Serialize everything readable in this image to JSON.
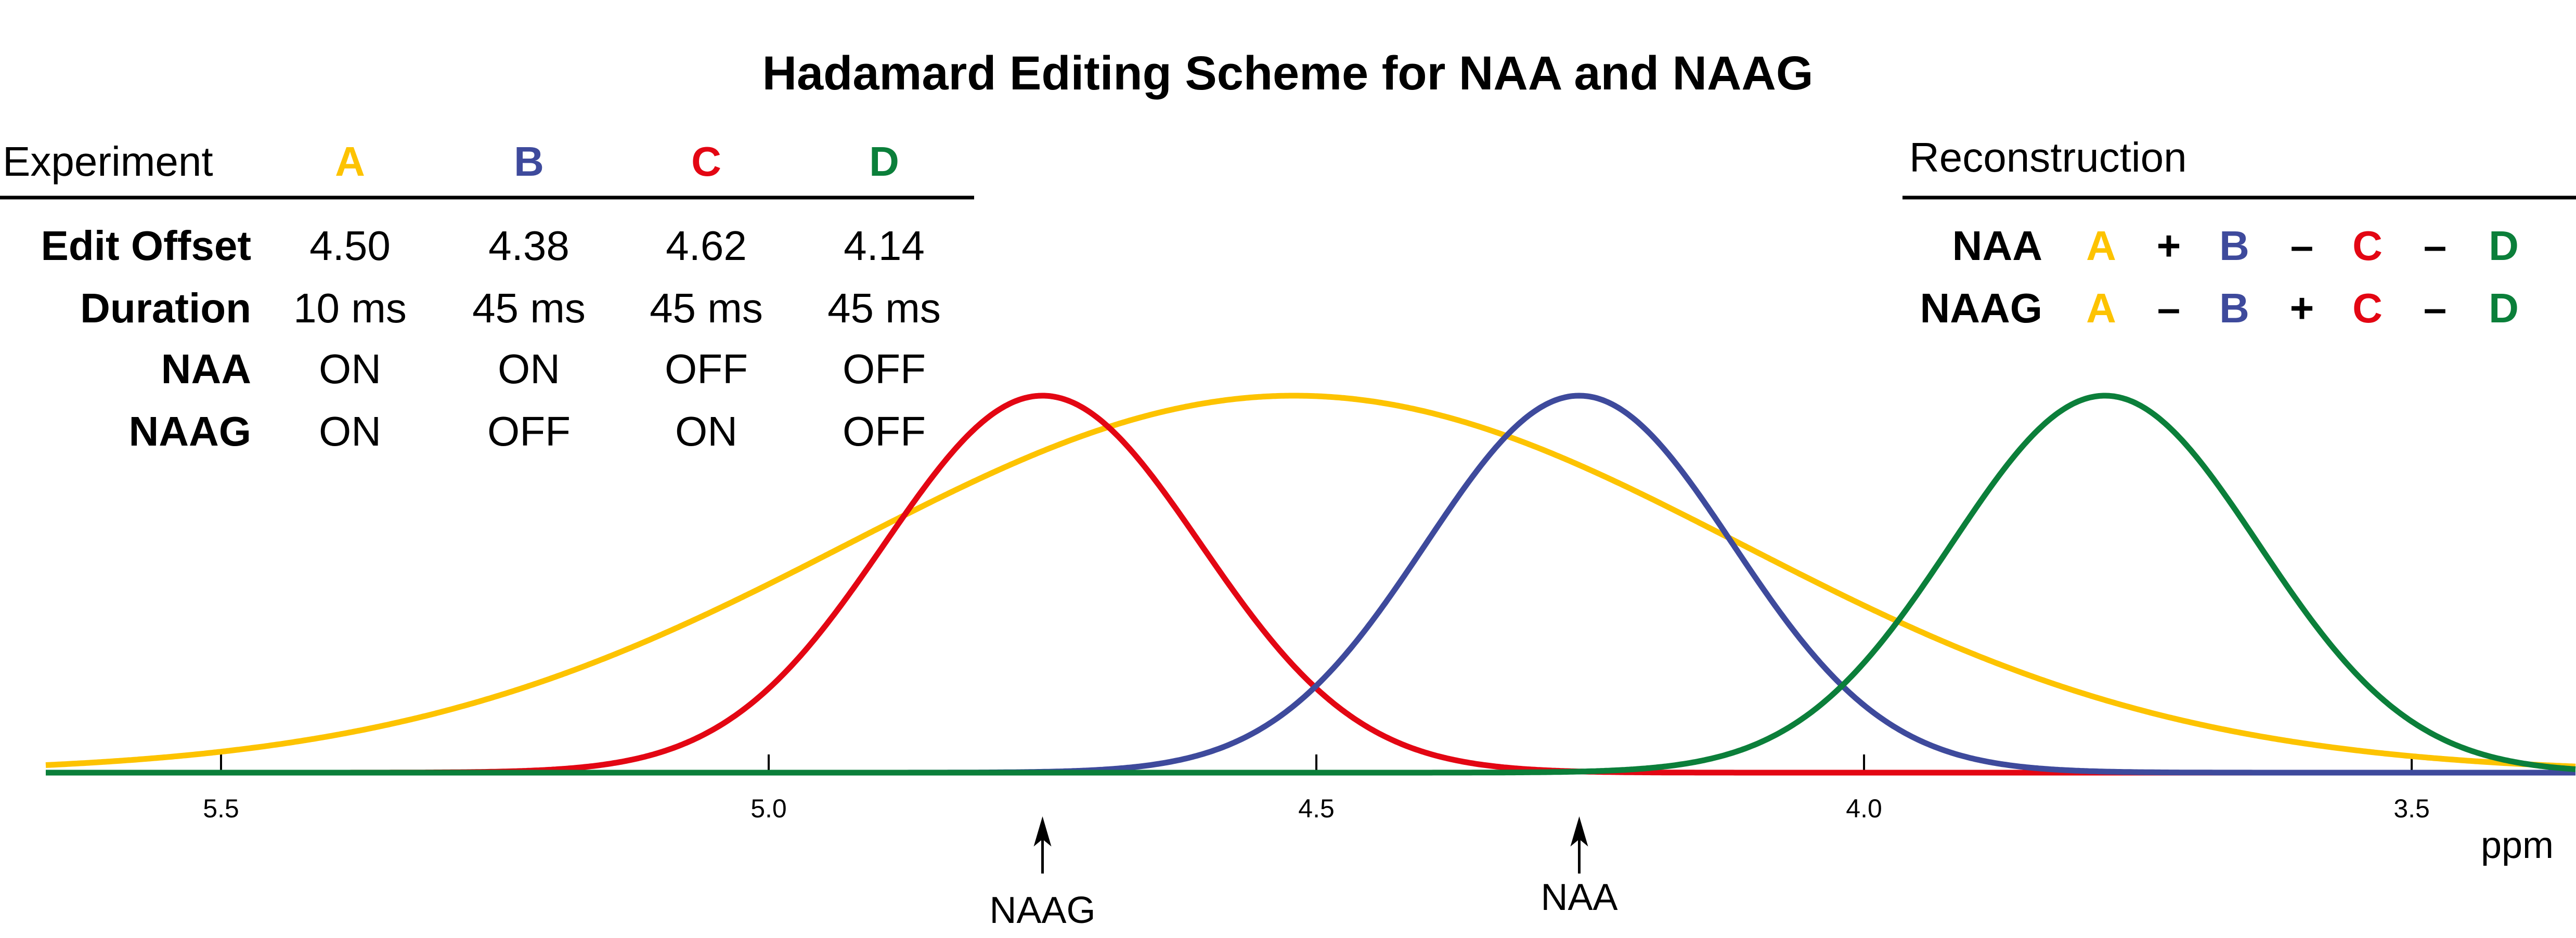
{
  "title": "Hadamard Editing Scheme for NAA and NAAG",
  "colors": {
    "A": "#FDC300",
    "B": "#3E4A9C",
    "C": "#E30613",
    "D": "#0B7F3A"
  },
  "table": {
    "header": "Experiment",
    "columns": [
      "A",
      "B",
      "C",
      "D"
    ],
    "rows": [
      {
        "label": "Edit Offset",
        "values": [
          "4.50",
          "4.38",
          "4.62",
          "4.14"
        ]
      },
      {
        "label": "Duration",
        "values": [
          "10 ms",
          "45 ms",
          "45 ms",
          "45 ms"
        ]
      },
      {
        "label": "NAA",
        "values": [
          "ON",
          "ON",
          "OFF",
          "OFF"
        ]
      },
      {
        "label": "NAAG",
        "values": [
          "ON",
          "OFF",
          "ON",
          "OFF"
        ]
      }
    ]
  },
  "reconstruction": {
    "header": "Reconstruction",
    "rows": [
      {
        "label": "NAA",
        "terms": [
          "A",
          "+",
          "B",
          "–",
          "C",
          "–",
          "D"
        ]
      },
      {
        "label": "NAAG",
        "terms": [
          "A",
          "–",
          "B",
          "+",
          "C",
          "–",
          "D"
        ]
      }
    ]
  },
  "chart_data": {
    "type": "line",
    "xlabel": "ppm",
    "xlim": [
      5.66,
      3.35
    ],
    "x_reversed": true,
    "xticks": [
      "5.5",
      "5.0",
      "4.5",
      "4.0",
      "3.5"
    ],
    "series": [
      {
        "key": "A",
        "center_ppm": 4.52,
        "fwhm_ppm": 0.96,
        "relative_height": 1.0
      },
      {
        "key": "C",
        "center_ppm": 4.75,
        "fwhm_ppm": 0.34,
        "relative_height": 1.0
      },
      {
        "key": "B",
        "center_ppm": 4.26,
        "fwhm_ppm": 0.33,
        "relative_height": 1.0
      },
      {
        "key": "D",
        "center_ppm": 3.78,
        "fwhm_ppm": 0.33,
        "relative_height": 1.0
      }
    ],
    "annotations": [
      {
        "label": "NAAG",
        "ppm": 4.75
      },
      {
        "label": "NAA",
        "ppm": 4.26
      }
    ]
  }
}
